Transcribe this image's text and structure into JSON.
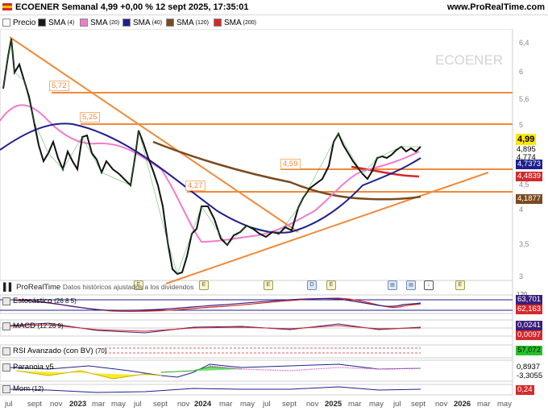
{
  "header": {
    "title": "ECOENER Semanal 4,99 +0,00 % 12 sept 2025, 17:35:01",
    "site": "www.ProRealTime.com",
    "flag_icon": "spain-flag-icon"
  },
  "legend": [
    {
      "name": "Precio",
      "param": "",
      "color": "#000000"
    },
    {
      "name": "SMA",
      "param": "(4)",
      "color": "#1a1a1a"
    },
    {
      "name": "SMA",
      "param": "(20)",
      "color": "#f07ccc"
    },
    {
      "name": "SMA",
      "param": "(40)",
      "color": "#1f1f8f"
    },
    {
      "name": "SMA",
      "param": "(120)",
      "color": "#7a4a1e"
    },
    {
      "name": "SMA",
      "param": "(200)",
      "color": "#d42a2a"
    }
  ],
  "watermark": "ECOENER",
  "horizontal_labels": [
    "5,72",
    "5,25",
    "4,59",
    "4,27"
  ],
  "price_axis": {
    "ticks": [
      "6,4",
      "6",
      "5,6",
      "5",
      "4,5",
      "4",
      "3,5",
      "3"
    ],
    "tags": [
      {
        "text": "4,99",
        "bg": "#ffe800",
        "fg": "#000000",
        "bold": true
      },
      {
        "text": "4,895",
        "bg": "#ffffff",
        "fg": "#000000",
        "bold": false
      },
      {
        "text": "4,774",
        "bg": "#ffffff",
        "fg": "#000000",
        "bold": false
      },
      {
        "text": "4,7373",
        "bg": "#1f1f8f",
        "fg": "#ffffff",
        "bold": false
      },
      {
        "text": "4,4839",
        "bg": "#d42a2a",
        "fg": "#ffffff",
        "bold": false
      },
      {
        "text": "4,1877",
        "bg": "#7a4a1e",
        "fg": "#ffffff",
        "bold": false
      }
    ]
  },
  "events": [
    "E",
    "E",
    "E",
    "D",
    "E",
    "E"
  ],
  "event_icons": [
    "doc-icon",
    "doc-icon",
    "download-icon"
  ],
  "prorealtime": {
    "label": "ProRealTime",
    "note": "Datos históricos ajustados a los dividendos"
  },
  "panels": [
    {
      "name": "Estocástico",
      "param": "(26 8 5)",
      "tags": [
        {
          "text": "63,701",
          "bg": "#3b1f7a",
          "fg": "#ffffff"
        },
        {
          "text": "62,163",
          "bg": "#d42a2a",
          "fg": "#ffffff"
        }
      ],
      "subtext": "120"
    },
    {
      "name": "MACD",
      "param": "(12 26 9)",
      "tags": [
        {
          "text": "0,0241",
          "bg": "#3b1f7a",
          "fg": "#ffffff"
        },
        {
          "text": "0,0097",
          "bg": "#d42a2a",
          "fg": "#ffffff"
        }
      ]
    },
    {
      "name": "RSI Avanzado (con BV)",
      "param": "(70)",
      "tags": [
        {
          "text": "57,072",
          "bg": "#27c22a",
          "fg": "#000000"
        }
      ]
    },
    {
      "name": "Paranoia v5",
      "param": "",
      "tags": [
        {
          "text": "0,8937",
          "bg": "#ffffff",
          "fg": "#000000"
        },
        {
          "text": "-3,3055",
          "bg": "#ffffff",
          "fg": "#000000"
        }
      ]
    },
    {
      "name": "Mom",
      "param": "(12)",
      "tags": [
        {
          "text": "0,24",
          "bg": "#d42a2a",
          "fg": "#ffffff"
        }
      ]
    }
  ],
  "x_axis": [
    {
      "label": "jul",
      "bold": false
    },
    {
      "label": "sept",
      "bold": false
    },
    {
      "label": "nov",
      "bold": false
    },
    {
      "label": "2023",
      "bold": true
    },
    {
      "label": "mar",
      "bold": false
    },
    {
      "label": "may",
      "bold": false
    },
    {
      "label": "jul",
      "bold": false
    },
    {
      "label": "sept",
      "bold": false
    },
    {
      "label": "nov",
      "bold": false
    },
    {
      "label": "2024",
      "bold": true
    },
    {
      "label": "mar",
      "bold": false
    },
    {
      "label": "may",
      "bold": false
    },
    {
      "label": "jul",
      "bold": false
    },
    {
      "label": "sept",
      "bold": false
    },
    {
      "label": "nov",
      "bold": false
    },
    {
      "label": "2025",
      "bold": true
    },
    {
      "label": "mar",
      "bold": false
    },
    {
      "label": "may",
      "bold": false
    },
    {
      "label": "jul",
      "bold": false
    },
    {
      "label": "sept",
      "bold": false
    },
    {
      "label": "nov",
      "bold": false
    },
    {
      "label": "2026",
      "bold": true
    },
    {
      "label": "mar",
      "bold": false
    },
    {
      "label": "may",
      "bold": false
    }
  ]
}
